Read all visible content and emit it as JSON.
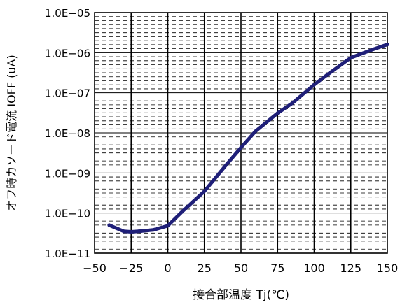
{
  "chart_data": {
    "type": "line",
    "xlabel": "接合部温度 Tj(℃)",
    "ylabel": "オフ時カソード電流 IOFF (uA)",
    "xlim": [
      -50,
      150
    ],
    "ylim": [
      1e-11,
      1e-05
    ],
    "yscale": "log",
    "grid": "on",
    "legend": "none",
    "x_ticks": [
      -50,
      -25,
      0,
      25,
      50,
      75,
      100,
      125,
      150
    ],
    "x_tick_labels": [
      "−50",
      "−25",
      "0",
      "25",
      "50",
      "75",
      "100",
      "125",
      "150"
    ],
    "y_ticks": [
      1e-11,
      1e-10,
      1e-09,
      1e-08,
      1e-07,
      1e-06,
      1e-05
    ],
    "y_tick_labels": [
      "1.0E−11",
      "1.0E−10",
      "1.0E−09",
      "1.0E−08",
      "1.0E−07",
      "1.0E−06",
      "1.0E−05"
    ],
    "series": [
      {
        "color": "#1f1f78",
        "points": [
          [
            -40,
            5e-11
          ],
          [
            -30,
            3.5e-11
          ],
          [
            -25,
            3.4e-11
          ],
          [
            -20,
            3.5e-11
          ],
          [
            -10,
            3.8e-11
          ],
          [
            0,
            4.8e-11
          ],
          [
            10,
            1.1e-10
          ],
          [
            25,
            3.5e-10
          ],
          [
            40,
            1.6e-09
          ],
          [
            50,
            4.3e-09
          ],
          [
            60,
            1.1e-08
          ],
          [
            75,
            3.1e-08
          ],
          [
            85,
            5.5e-08
          ],
          [
            100,
            1.6e-07
          ],
          [
            110,
            3e-07
          ],
          [
            125,
            7.5e-07
          ],
          [
            140,
            1.2e-06
          ],
          [
            150,
            1.6e-06
          ]
        ]
      }
    ]
  }
}
